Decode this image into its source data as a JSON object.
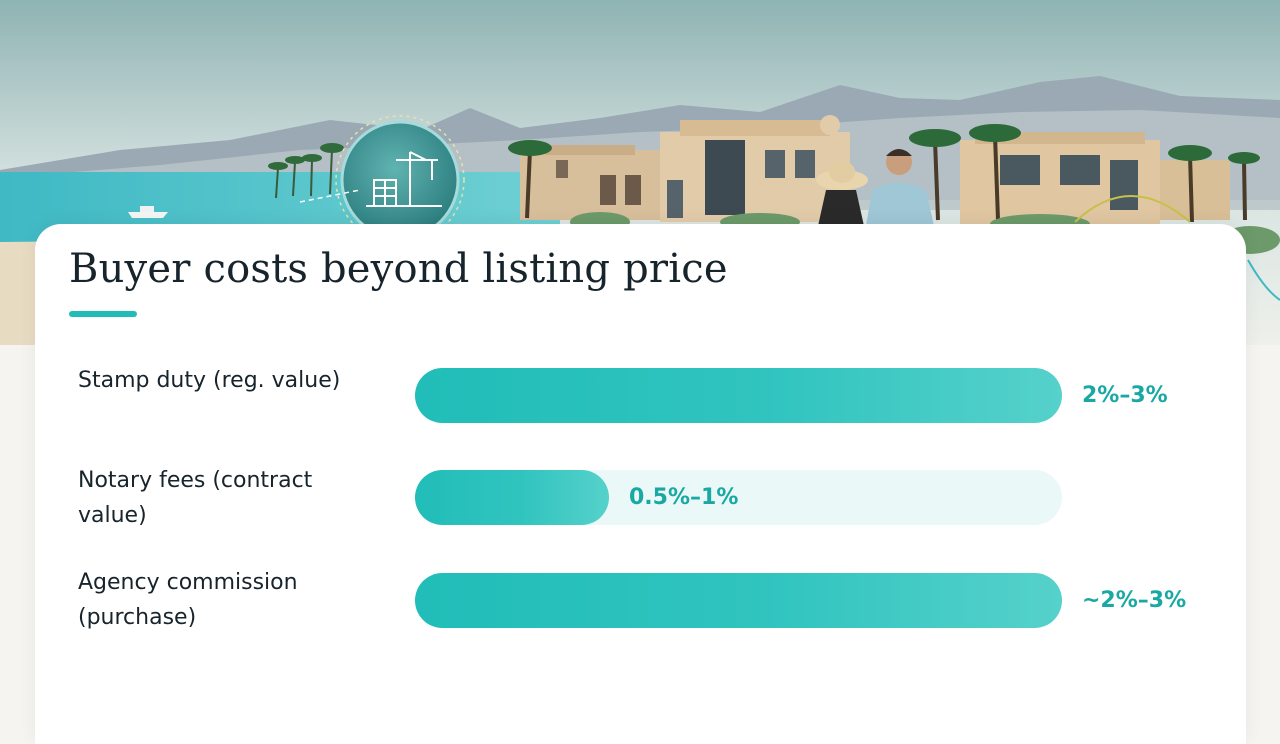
{
  "title": "Buyer costs beyond listing price",
  "colors": {
    "accent": "#22bcb7",
    "track": "#eaf8f8",
    "value_text": "#1aa8a3",
    "title_text": "#17242c"
  },
  "hero": {
    "icon": "construction-crane-building-icon"
  },
  "chart_data": {
    "type": "bar",
    "orientation": "horizontal",
    "title": "",
    "xlabel": "",
    "ylabel": "",
    "xlim": [
      0,
      3
    ],
    "grid": false,
    "legend": "none",
    "categories": [
      "Stamp duty (reg. value)",
      "Notary fees (contract value)",
      "Agency commission (purchase)"
    ],
    "values": [
      3,
      0.9,
      3
    ],
    "ranges": [
      [
        2,
        3
      ],
      [
        0.5,
        1
      ],
      [
        2,
        3
      ]
    ],
    "value_labels": [
      "2%–3%",
      "0.5%–1%",
      "~2%–3%"
    ]
  }
}
